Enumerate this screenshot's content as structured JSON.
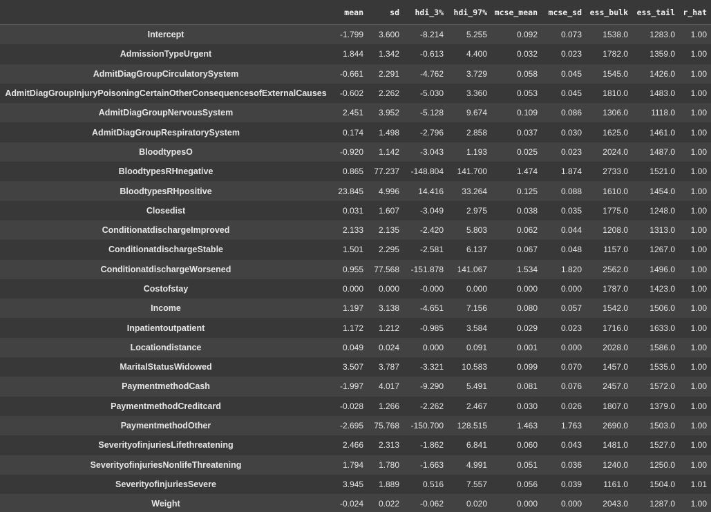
{
  "table": {
    "columns": [
      "",
      "mean",
      "sd",
      "hdi_3%",
      "hdi_97%",
      "mcse_mean",
      "mcse_sd",
      "ess_bulk",
      "ess_tail",
      "r_hat"
    ],
    "rows": [
      [
        "Intercept",
        "-1.799",
        "3.600",
        "-8.214",
        "5.255",
        "0.092",
        "0.073",
        "1538.0",
        "1283.0",
        "1.00"
      ],
      [
        "AdmissionTypeUrgent",
        "1.844",
        "1.342",
        "-0.613",
        "4.400",
        "0.032",
        "0.023",
        "1782.0",
        "1359.0",
        "1.00"
      ],
      [
        "AdmitDiagGroupCirculatorySystem",
        "-0.661",
        "2.291",
        "-4.762",
        "3.729",
        "0.058",
        "0.045",
        "1545.0",
        "1426.0",
        "1.00"
      ],
      [
        "AdmitDiagGroupInjuryPoisoningCertainOtherConsequencesofExternalCauses",
        "-0.602",
        "2.262",
        "-5.030",
        "3.360",
        "0.053",
        "0.045",
        "1810.0",
        "1483.0",
        "1.00"
      ],
      [
        "AdmitDiagGroupNervousSystem",
        "2.451",
        "3.952",
        "-5.128",
        "9.674",
        "0.109",
        "0.086",
        "1306.0",
        "1118.0",
        "1.00"
      ],
      [
        "AdmitDiagGroupRespiratorySystem",
        "0.174",
        "1.498",
        "-2.796",
        "2.858",
        "0.037",
        "0.030",
        "1625.0",
        "1461.0",
        "1.00"
      ],
      [
        "BloodtypesO",
        "-0.920",
        "1.142",
        "-3.043",
        "1.193",
        "0.025",
        "0.023",
        "2024.0",
        "1487.0",
        "1.00"
      ],
      [
        "BloodtypesRHnegative",
        "0.865",
        "77.237",
        "-148.804",
        "141.700",
        "1.474",
        "1.874",
        "2733.0",
        "1521.0",
        "1.00"
      ],
      [
        "BloodtypesRHpositive",
        "23.845",
        "4.996",
        "14.416",
        "33.264",
        "0.125",
        "0.088",
        "1610.0",
        "1454.0",
        "1.00"
      ],
      [
        "Closedist",
        "0.031",
        "1.607",
        "-3.049",
        "2.975",
        "0.038",
        "0.035",
        "1775.0",
        "1248.0",
        "1.00"
      ],
      [
        "ConditionatdischargeImproved",
        "2.133",
        "2.135",
        "-2.420",
        "5.803",
        "0.062",
        "0.044",
        "1208.0",
        "1313.0",
        "1.00"
      ],
      [
        "ConditionatdischargeStable",
        "1.501",
        "2.295",
        "-2.581",
        "6.137",
        "0.067",
        "0.048",
        "1157.0",
        "1267.0",
        "1.00"
      ],
      [
        "ConditionatdischargeWorsened",
        "0.955",
        "77.568",
        "-151.878",
        "141.067",
        "1.534",
        "1.820",
        "2562.0",
        "1496.0",
        "1.00"
      ],
      [
        "Costofstay",
        "0.000",
        "0.000",
        "-0.000",
        "0.000",
        "0.000",
        "0.000",
        "1787.0",
        "1423.0",
        "1.00"
      ],
      [
        "Income",
        "1.197",
        "3.138",
        "-4.651",
        "7.156",
        "0.080",
        "0.057",
        "1542.0",
        "1506.0",
        "1.00"
      ],
      [
        "Inpatientoutpatient",
        "1.172",
        "1.212",
        "-0.985",
        "3.584",
        "0.029",
        "0.023",
        "1716.0",
        "1633.0",
        "1.00"
      ],
      [
        "Locationdistance",
        "0.049",
        "0.024",
        "0.000",
        "0.091",
        "0.001",
        "0.000",
        "2028.0",
        "1586.0",
        "1.00"
      ],
      [
        "MaritalStatusWidowed",
        "3.507",
        "3.787",
        "-3.321",
        "10.583",
        "0.099",
        "0.070",
        "1457.0",
        "1535.0",
        "1.00"
      ],
      [
        "PaymentmethodCash",
        "-1.997",
        "4.017",
        "-9.290",
        "5.491",
        "0.081",
        "0.076",
        "2457.0",
        "1572.0",
        "1.00"
      ],
      [
        "PaymentmethodCreditcard",
        "-0.028",
        "1.266",
        "-2.262",
        "2.467",
        "0.030",
        "0.026",
        "1807.0",
        "1379.0",
        "1.00"
      ],
      [
        "PaymentmethodOther",
        "-2.695",
        "75.768",
        "-150.700",
        "128.515",
        "1.463",
        "1.763",
        "2690.0",
        "1503.0",
        "1.00"
      ],
      [
        "SeverityofinjuriesLifethreatening",
        "2.466",
        "2.313",
        "-1.862",
        "6.841",
        "0.060",
        "0.043",
        "1481.0",
        "1527.0",
        "1.00"
      ],
      [
        "SeverityofinjuriesNonlifeThreatening",
        "1.794",
        "1.780",
        "-1.663",
        "4.991",
        "0.051",
        "0.036",
        "1240.0",
        "1250.0",
        "1.00"
      ],
      [
        "SeverityofinjuriesSevere",
        "3.945",
        "1.889",
        "0.516",
        "7.557",
        "0.056",
        "0.039",
        "1161.0",
        "1504.0",
        "1.01"
      ],
      [
        "Weight",
        "-0.024",
        "0.022",
        "-0.062",
        "0.020",
        "0.000",
        "0.000",
        "2043.0",
        "1287.0",
        "1.00"
      ]
    ]
  },
  "colors": {
    "background": "#383838",
    "row_alt": "#424242",
    "text": "#e6e6e6"
  }
}
